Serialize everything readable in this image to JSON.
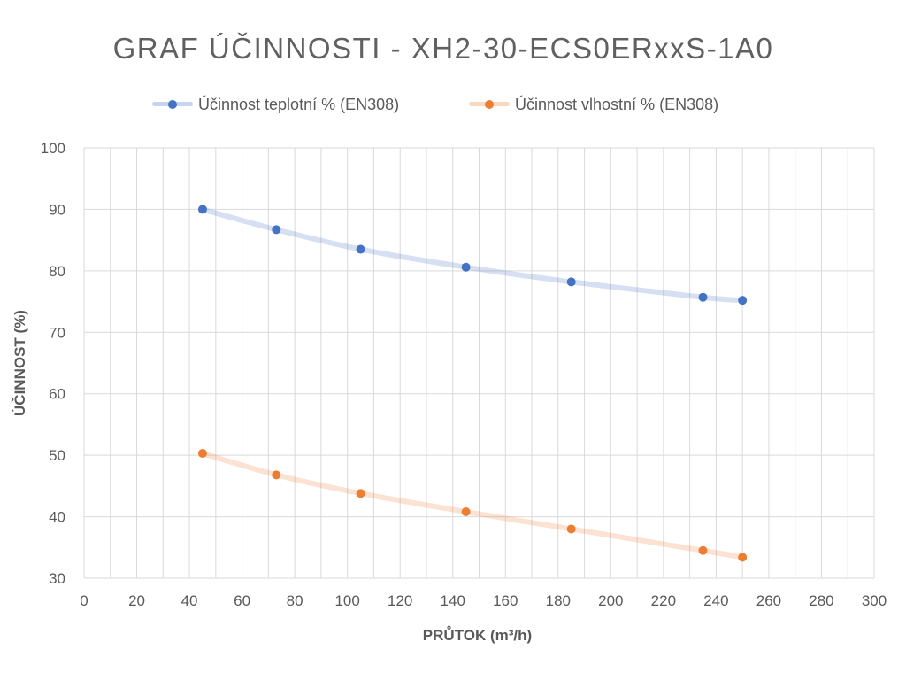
{
  "colors": {
    "series1": "#4472C4",
    "series2": "#ED7D31",
    "grid": "#D9D9D9",
    "text": "#595959",
    "title": "#606060"
  },
  "chart_data": {
    "type": "scatter",
    "title": "GRAF ÚČINNOSTI - XH2-30-ECS0ERxxS-1A0",
    "xlabel": "PRŮTOK (m³/h)",
    "ylabel": "ÚČINNOST (%)",
    "xlim": [
      0,
      300
    ],
    "ylim": [
      30,
      100
    ],
    "xticks": [
      0,
      20,
      40,
      60,
      80,
      100,
      120,
      140,
      160,
      180,
      200,
      220,
      240,
      260,
      280,
      300
    ],
    "yticks": [
      30,
      40,
      50,
      60,
      70,
      80,
      90,
      100
    ],
    "grid": true,
    "legend_position": "top",
    "trendline": "smooth",
    "series": [
      {
        "name": "Účinnost teplotní % (EN308)",
        "x": [
          45,
          73,
          105,
          145,
          185,
          235,
          250
        ],
        "y": [
          90,
          86.7,
          83.5,
          80.6,
          78.2,
          75.7,
          75.2
        ]
      },
      {
        "name": "Účinnost vlhostní % (EN308)",
        "x": [
          45,
          73,
          105,
          145,
          185,
          235,
          250
        ],
        "y": [
          50.3,
          46.8,
          43.8,
          40.8,
          38,
          34.5,
          33.4
        ]
      }
    ]
  }
}
